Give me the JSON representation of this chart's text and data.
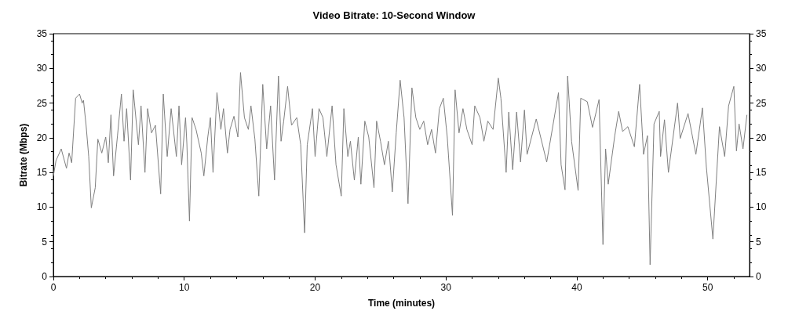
{
  "chart_data": {
    "type": "line",
    "title": "Video Bitrate: 10-Second Window",
    "xlabel": "Time (minutes)",
    "ylabel": "Bitrate (Mbps)",
    "xlim": [
      0,
      53.2
    ],
    "xticks": [
      0,
      10,
      20,
      30,
      40,
      50
    ],
    "ylim": [
      0,
      35
    ],
    "yticks": [
      0,
      5,
      10,
      15,
      20,
      25,
      30,
      35
    ],
    "y2lim": [
      0,
      35
    ],
    "y2ticks": [
      0,
      5,
      10,
      15,
      20,
      25,
      30,
      35
    ],
    "grid": false,
    "marker": "none",
    "line_style": "solid",
    "color": "#7f7f7f",
    "x": [
      0,
      0.2,
      0.6,
      1.0,
      1.2,
      1.4,
      1.7,
      2.0,
      2.2,
      2.3,
      2.5,
      2.7,
      2.9,
      3.2,
      3.4,
      3.7,
      4.0,
      4.2,
      4.4,
      4.6,
      4.9,
      5.2,
      5.4,
      5.6,
      5.9,
      6.1,
      6.5,
      6.7,
      7.0,
      7.2,
      7.5,
      7.8,
      8.2,
      8.4,
      8.7,
      9.0,
      9.4,
      9.6,
      9.8,
      10.1,
      10.2,
      10.4,
      10.6,
      10.9,
      11.3,
      11.5,
      11.8,
      12.0,
      12.2,
      12.5,
      12.8,
      13.0,
      13.3,
      13.5,
      13.8,
      14.1,
      14.3,
      14.6,
      14.9,
      15.1,
      15.4,
      15.7,
      16.0,
      16.3,
      16.6,
      16.9,
      17.2,
      17.4,
      17.6,
      17.9,
      18.2,
      18.6,
      18.9,
      19.2,
      19.4,
      19.8,
      20.0,
      20.3,
      20.6,
      20.9,
      21.3,
      21.6,
      22.0,
      22.2,
      22.5,
      22.7,
      23.0,
      23.3,
      23.5,
      23.8,
      24.1,
      24.5,
      24.7,
      25.0,
      25.3,
      25.6,
      25.9,
      26.2,
      26.5,
      26.8,
      27.1,
      27.4,
      27.7,
      28.0,
      28.3,
      28.6,
      28.9,
      29.2,
      29.5,
      29.8,
      30.1,
      30.5,
      30.7,
      31.0,
      31.3,
      31.6,
      32.0,
      32.2,
      32.6,
      32.9,
      33.2,
      33.6,
      34.0,
      34.2,
      34.6,
      34.8,
      35.1,
      35.4,
      35.7,
      36.0,
      36.2,
      36.9,
      37.7,
      38.6,
      38.8,
      39.1,
      39.3,
      39.6,
      40.1,
      40.3,
      40.8,
      41.2,
      41.7,
      42.0,
      42.2,
      42.4,
      42.9,
      43.2,
      43.5,
      43.9,
      44.4,
      44.8,
      45.1,
      45.4,
      45.6,
      45.9,
      46.3,
      46.4,
      46.7,
      47.0,
      47.7,
      47.9,
      48.5,
      49.1,
      49.6,
      49.9,
      50.4,
      50.9,
      51.3,
      51.6,
      52.0,
      52.2,
      52.4,
      52.7,
      53.0
    ],
    "values": [
      14.5,
      16.7,
      18.4,
      15.6,
      17.8,
      16.4,
      25.7,
      26.3,
      25,
      25.4,
      21.8,
      17.3,
      9.9,
      12.8,
      19.8,
      17.8,
      20.1,
      16.4,
      23.3,
      14.5,
      20.3,
      26.3,
      19.5,
      24.2,
      13.9,
      26.9,
      19,
      24.6,
      15,
      24.2,
      20.7,
      21.8,
      11.9,
      26.3,
      17.3,
      24.2,
      17.3,
      24.6,
      16.1,
      22.9,
      19.2,
      8,
      22.9,
      21.2,
      17.8,
      14.5,
      20.1,
      22.9,
      15,
      26.5,
      21.2,
      24.2,
      17.8,
      21.2,
      23.1,
      20.1,
      29.4,
      22.9,
      21.2,
      24.6,
      19.8,
      11.6,
      27.7,
      18.4,
      24.6,
      13.9,
      28.9,
      19.5,
      22.4,
      27.4,
      21.8,
      22.9,
      19,
      6.3,
      19,
      24.2,
      17.3,
      24.2,
      22.9,
      17.3,
      24.6,
      16.1,
      11.6,
      24.2,
      17.3,
      19.5,
      13.9,
      20.1,
      13.3,
      22.4,
      20.1,
      12.8,
      22.4,
      19.5,
      16.1,
      19.5,
      12.2,
      20.7,
      28.3,
      22.9,
      10.5,
      27.2,
      22.9,
      21.2,
      22.4,
      19,
      21.2,
      17.8,
      24.2,
      25.7,
      20.1,
      8.8,
      26.9,
      20.7,
      24.2,
      21.2,
      19,
      24.6,
      22.9,
      19.5,
      22.4,
      21.2,
      28.6,
      25.7,
      15,
      23.7,
      15.4,
      23.7,
      16.5,
      24,
      17.6,
      22.7,
      16.5,
      26.5,
      16.1,
      12.5,
      28.9,
      19.5,
      12.4,
      25.7,
      25.2,
      21.5,
      25.5,
      4.6,
      18.4,
      13.3,
      20.3,
      23.8,
      20.9,
      21.6,
      18.7,
      27.7,
      17.6,
      20.3,
      1.7,
      22,
      23.8,
      17.3,
      22.6,
      15,
      25,
      19.9,
      23.5,
      17.6,
      24.3,
      15.8,
      5.4,
      21.6,
      17.3,
      24.6,
      27.4,
      18.1,
      22,
      18.4,
      23.3
    ]
  }
}
